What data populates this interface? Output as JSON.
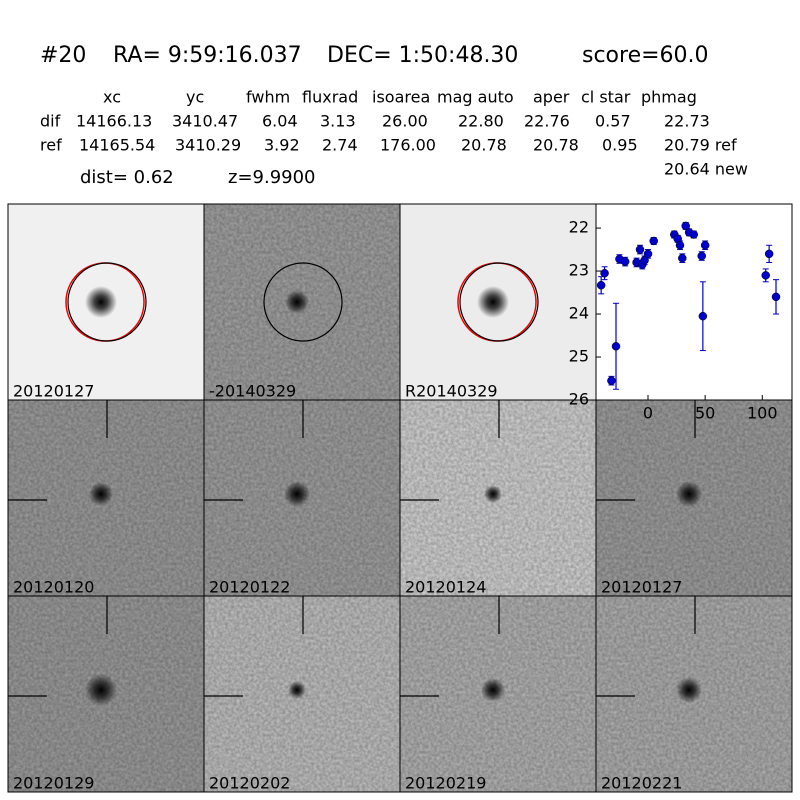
{
  "header": {
    "id": "#20",
    "ra": "RA= 9:59:16.037",
    "dec": "DEC= 1:50:48.30",
    "score": "score=60.0"
  },
  "table": {
    "columns": [
      "xc",
      "yc",
      "fwhm",
      "fluxrad",
      "isoarea",
      "mag auto",
      "aper",
      "cl star",
      "phmag"
    ],
    "rows": [
      [
        "dif",
        "14166.13",
        "3410.47",
        "6.04",
        "3.13",
        "26.00",
        "22.80",
        "22.76",
        "0.57",
        "22.73"
      ],
      [
        "ref",
        "14165.54",
        "3410.29",
        "3.92",
        "2.74",
        "176.00",
        "20.78",
        "20.78",
        "0.95",
        "20.79 ref"
      ]
    ],
    "extra": "20.64 new",
    "dist": "dist=  0.62",
    "z": "z=9.9900"
  },
  "panels": [
    {
      "label": "20120127"
    },
    {
      "label": "-20140329"
    },
    {
      "label": "R20140329"
    },
    {
      "label": "20120120"
    },
    {
      "label": "20120122"
    },
    {
      "label": "20120124"
    },
    {
      "label": "20120127"
    },
    {
      "label": "20120129"
    },
    {
      "label": "20120202"
    },
    {
      "label": "20120219"
    },
    {
      "label": "20120221"
    }
  ],
  "chart_data": {
    "type": "errorbar",
    "color": "#0000cc",
    "x": [
      -41,
      -38,
      -32,
      -28,
      -25,
      -20,
      -10,
      -7,
      -5,
      -3,
      0,
      5,
      23,
      26,
      28,
      30,
      33,
      36,
      40,
      47,
      48,
      50,
      103,
      106,
      112
    ],
    "values": [
      23.33,
      23.05,
      25.55,
      24.75,
      22.72,
      22.78,
      22.8,
      22.5,
      22.85,
      22.75,
      22.6,
      22.3,
      22.15,
      22.25,
      22.4,
      22.7,
      21.95,
      22.1,
      22.15,
      22.65,
      24.05,
      22.4,
      23.1,
      22.6,
      23.6
    ],
    "errors": [
      0.2,
      0.15,
      0.1,
      1.0,
      0.1,
      0.1,
      0.1,
      0.1,
      0.1,
      0.1,
      0.1,
      0.08,
      0.08,
      0.08,
      0.1,
      0.1,
      0.08,
      0.08,
      0.08,
      0.1,
      0.8,
      0.1,
      0.15,
      0.2,
      0.4
    ],
    "xlim": [
      -45.5,
      126
    ],
    "ylim": [
      26,
      21.44
    ],
    "xticks": [
      0,
      50,
      100
    ],
    "yticks": [
      22,
      23,
      24,
      25,
      26
    ]
  }
}
